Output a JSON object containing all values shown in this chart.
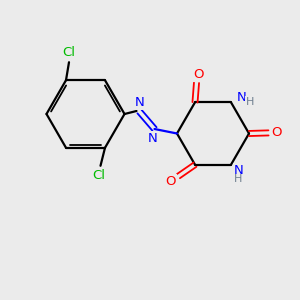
{
  "background_color": "#ebebeb",
  "bond_color": "#000000",
  "nitrogen_color": "#0000ff",
  "oxygen_color": "#ff0000",
  "chlorine_color": "#00bb00",
  "hydrogen_color": "#708090",
  "figsize": [
    3.0,
    3.0
  ],
  "dpi": 100,
  "xlim": [
    0,
    10
  ],
  "ylim": [
    0,
    10
  ]
}
